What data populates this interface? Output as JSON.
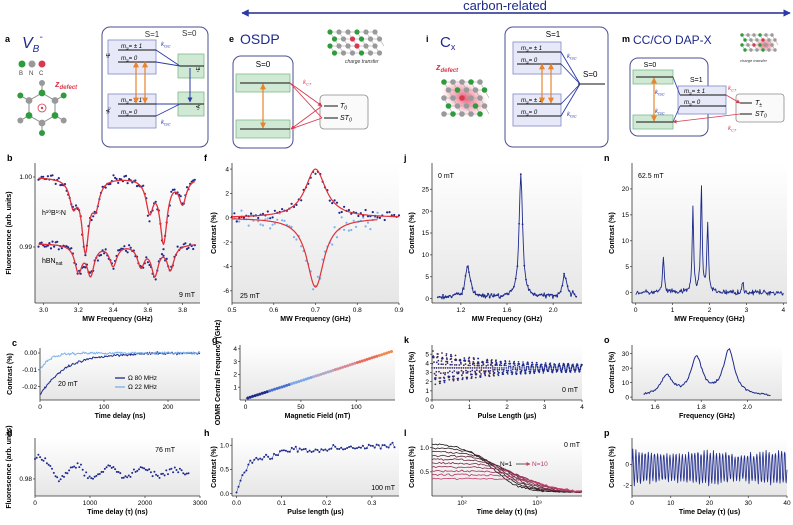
{
  "banner": {
    "label": "carbon-related"
  },
  "columns": [
    {
      "letter": "a",
      "title": "V",
      "title_sub": "B",
      "title_sup": "-",
      "atoms": [
        "B",
        "N",
        "C"
      ],
      "defect_label": "z",
      "defect_sub": "defect",
      "diagram": {
        "triplet_label": "S=1",
        "singlet_label": "S=0",
        "upper_levels": [
          "m",
          "m"
        ],
        "upper_values": [
          "= ± 1",
          "= 0"
        ],
        "lower_values": [
          "= ± 1",
          "= 0"
        ],
        "ms_sub": "S",
        "upper_state": "³E",
        "lower_state": "³A₂",
        "singlet_upper": "¹E",
        "singlet_lower": "¹A₁",
        "isc_label": "k",
        "isc_sub": "ISC"
      }
    },
    {
      "letter": "e",
      "title": "OSDP",
      "charge_label": "charge transfer",
      "diagram": {
        "singlet_label": "S=0",
        "ct_label": "k",
        "ct_sub": "CT",
        "t_label": "T",
        "t_sub": "0",
        "st_label": "ST",
        "st_sub": "0"
      }
    },
    {
      "letter": "i",
      "title": "C",
      "title_sub": "x",
      "defect_label": "z",
      "defect_sub": "defect",
      "diagram": {
        "triplet_label": "S=1",
        "singlet_label": "S=0",
        "upper_values": [
          "= ± 1",
          "= 0"
        ],
        "lower_values": [
          "= ± 1",
          "= 0"
        ],
        "ms_sub": "S",
        "isc_label": "k",
        "isc_sub": "ISC"
      }
    },
    {
      "letter": "m",
      "title": "CC/CO DAP-X",
      "charge_label": "charge transfer",
      "diagram": {
        "singlet_label": "S=0",
        "triplet_label": "S=1",
        "values": [
          "= ± 1",
          "= 0"
        ],
        "ms_sub": "S",
        "isc_label": "k",
        "isc_sub": "ISC",
        "ct_label": "k",
        "ct_sub": "CT",
        "t_label": "T",
        "t_sub": "±",
        "st_label": "ST",
        "st_sub": "0"
      }
    }
  ],
  "panels": {
    "b": {
      "letter": "b",
      "ylabel": "Fluorescence (arb. units)",
      "xlabel": "MW Frequency (GHz)",
      "yticks": [
        "1.00",
        "0.99"
      ],
      "xticks": [
        "3.0",
        "3.2",
        "3.4",
        "3.6",
        "3.8"
      ],
      "label_top": "h¹⁰B¹⁵N",
      "label_bottom": "hBN",
      "label_bottom_sub": "nat",
      "field": "9 mT"
    },
    "f": {
      "letter": "f",
      "ylabel": "Contrast (%)",
      "xlabel": "MW Frequency (GHz)",
      "yticks": [
        "4",
        "2",
        "0",
        "-2",
        "-4",
        "-6"
      ],
      "xticks": [
        "0.5",
        "0.6",
        "0.7",
        "0.8",
        "0.9"
      ],
      "field": "25 mT"
    },
    "j": {
      "letter": "j",
      "ylabel": "Contrast (%)",
      "xlabel": "MW Frequency (GHz)",
      "yticks": [
        "0",
        "5",
        "10",
        "15",
        "20",
        "25"
      ],
      "xticks": [
        "1.2",
        "1.6",
        "2.0"
      ],
      "field": "0 mT"
    },
    "n": {
      "letter": "n",
      "ylabel": "Contrast (%)",
      "xlabel": "MW Frequency (GHz)",
      "yticks": [
        "0",
        "5",
        "10",
        "15",
        "20"
      ],
      "xticks": [
        "0",
        "1",
        "2",
        "3",
        "4"
      ],
      "field": "62.5 mT"
    },
    "c": {
      "letter": "c",
      "ylabel": "Contrast (%)",
      "xlabel": "Time delay (ns)",
      "yticks": [
        "0.00",
        "-0.01",
        "-0.02"
      ],
      "xticks": [
        "0",
        "100",
        "200"
      ],
      "field": "20 mT",
      "legend": [
        "Ω 80 MHz",
        "Ω 22 MHz"
      ]
    },
    "g": {
      "letter": "g",
      "ylabel": "ODMR Central Frequency (GHz)",
      "xlabel": "Magnetic Field (mT)",
      "yticks": [
        "4",
        "3",
        "2",
        "1"
      ],
      "xticks": [
        "0",
        "50",
        "100"
      ]
    },
    "k": {
      "letter": "k",
      "ylabel": "Contrast (%)",
      "xlabel": "Pulse Length (μs)",
      "yticks": [
        "0",
        "1",
        "2",
        "3",
        "4",
        "5"
      ],
      "xticks": [
        "0",
        "1",
        "2",
        "3",
        "4"
      ],
      "field": "0 mT"
    },
    "o": {
      "letter": "o",
      "ylabel": "Contrast (%)",
      "xlabel": "Frequency (GHz)",
      "yticks": [
        "0",
        "10",
        "20",
        "30"
      ],
      "xticks": [
        "1.6",
        "1.8",
        "2.0"
      ]
    },
    "d": {
      "letter": "d",
      "ylabel": "Fluorescence (arb. units)",
      "xlabel": "Time delay (τ) (ns)",
      "yticks": [
        "0.98"
      ],
      "xticks": [
        "0",
        "1000",
        "2000",
        "3000"
      ],
      "field": "76 mT"
    },
    "h": {
      "letter": "h",
      "ylabel": "Contrast (%)",
      "xlabel": "Pulse length (μs)",
      "yticks": [
        "0.0",
        "0.5",
        "1.0"
      ],
      "xticks": [
        "0.0",
        "0.1",
        "0.2",
        "0.3"
      ],
      "field": "100 mT"
    },
    "l": {
      "letter": "l",
      "ylabel": "Contrast (%)",
      "xlabel": "Time delay (τ) (ns)",
      "yticks": [
        "0.5",
        "1.0"
      ],
      "xticks": [
        "10²",
        "10³"
      ],
      "field": "0 mT",
      "n_start": "N=1",
      "n_end": "N=10"
    },
    "p": {
      "letter": "p",
      "ylabel": "Contrast (%)",
      "xlabel": "Time Delay (τ) (us)",
      "yticks": [
        "0",
        "-2"
      ],
      "xticks": [
        "0",
        "10",
        "20",
        "30",
        "40"
      ]
    }
  },
  "chart_data": [
    {
      "panel": "b",
      "type": "line",
      "xlim": [
        2.95,
        3.9
      ],
      "ylim": [
        0.982,
        1.002
      ],
      "series": [
        {
          "dips": [
            [
              3.17,
              0.0035
            ],
            [
              3.24,
              0.01
            ],
            [
              3.3,
              0.0035
            ],
            [
              3.61,
              0.0045
            ],
            [
              3.69,
              0.009
            ],
            [
              3.8,
              0.0035
            ]
          ],
          "base": 1.0
        },
        {
          "dips": [
            [
              3.2,
              0.0038
            ],
            [
              3.27,
              0.0042
            ],
            [
              3.4,
              0.003
            ],
            [
              3.56,
              0.003
            ],
            [
              3.64,
              0.0042
            ],
            [
              3.73,
              0.0035
            ]
          ],
          "base": 0.9905
        }
      ]
    },
    {
      "panel": "f",
      "type": "scatter",
      "xlim": [
        0.5,
        0.9
      ],
      "ylim": [
        -7,
        4.5
      ],
      "series": [
        {
          "amplitude": 4.0,
          "center": 0.7,
          "width": 0.03
        },
        {
          "amplitude": -5.7,
          "center": 0.7,
          "width": 0.025
        }
      ]
    },
    {
      "panel": "j",
      "type": "line",
      "xlim": [
        0.95,
        2.25
      ],
      "ylim": [
        -1,
        31
      ],
      "peaks": [
        [
          1.26,
          7
        ],
        [
          1.72,
          28.5
        ],
        [
          2.1,
          5
        ]
      ]
    },
    {
      "panel": "n",
      "type": "line",
      "xlim": [
        -0.1,
        4.1
      ],
      "ylim": [
        -2,
        25
      ],
      "peaks": [
        [
          0.75,
          7
        ],
        [
          1.55,
          16
        ],
        [
          1.78,
          21
        ],
        [
          1.95,
          13
        ],
        [
          2.9,
          2
        ]
      ]
    },
    {
      "panel": "c",
      "type": "line",
      "xlim": [
        0,
        250
      ],
      "ylim": [
        -0.028,
        0.003
      ],
      "series": [
        {
          "name": "Ω 80 MHz",
          "a": -0.025,
          "tau": 40
        },
        {
          "name": "Ω 22 MHz",
          "a": -0.01,
          "tau": 15
        }
      ]
    },
    {
      "panel": "g",
      "type": "scatter",
      "xlim": [
        -5,
        135
      ],
      "ylim": [
        0,
        4.3
      ],
      "slope": 0.028,
      "intercept": 0.1
    },
    {
      "panel": "k",
      "type": "scatter",
      "xlim": [
        0,
        4
      ],
      "ylim": [
        0,
        6
      ],
      "mean": 3.5,
      "amp": 1.6,
      "period": 0.12
    },
    {
      "panel": "o",
      "type": "line",
      "xlim": [
        1.5,
        2.15
      ],
      "ylim": [
        -2,
        36
      ],
      "peaks": [
        [
          1.65,
          14
        ],
        [
          1.78,
          26
        ],
        [
          1.92,
          31
        ]
      ]
    },
    {
      "panel": "d",
      "type": "scatter",
      "xlim": [
        0,
        3000
      ],
      "ylim": [
        0.975,
        0.992
      ]
    },
    {
      "panel": "h",
      "type": "scatter",
      "xlim": [
        -0.01,
        0.36
      ],
      "ylim": [
        -0.05,
        1.15
      ]
    },
    {
      "panel": "l",
      "type": "line",
      "xlim_log": [
        1.6,
        3.6
      ],
      "ylim": [
        0,
        1.2
      ]
    },
    {
      "panel": "p",
      "type": "line",
      "xlim": [
        0,
        40
      ],
      "ylim": [
        -3,
        2.5
      ],
      "period": 0.8
    }
  ]
}
